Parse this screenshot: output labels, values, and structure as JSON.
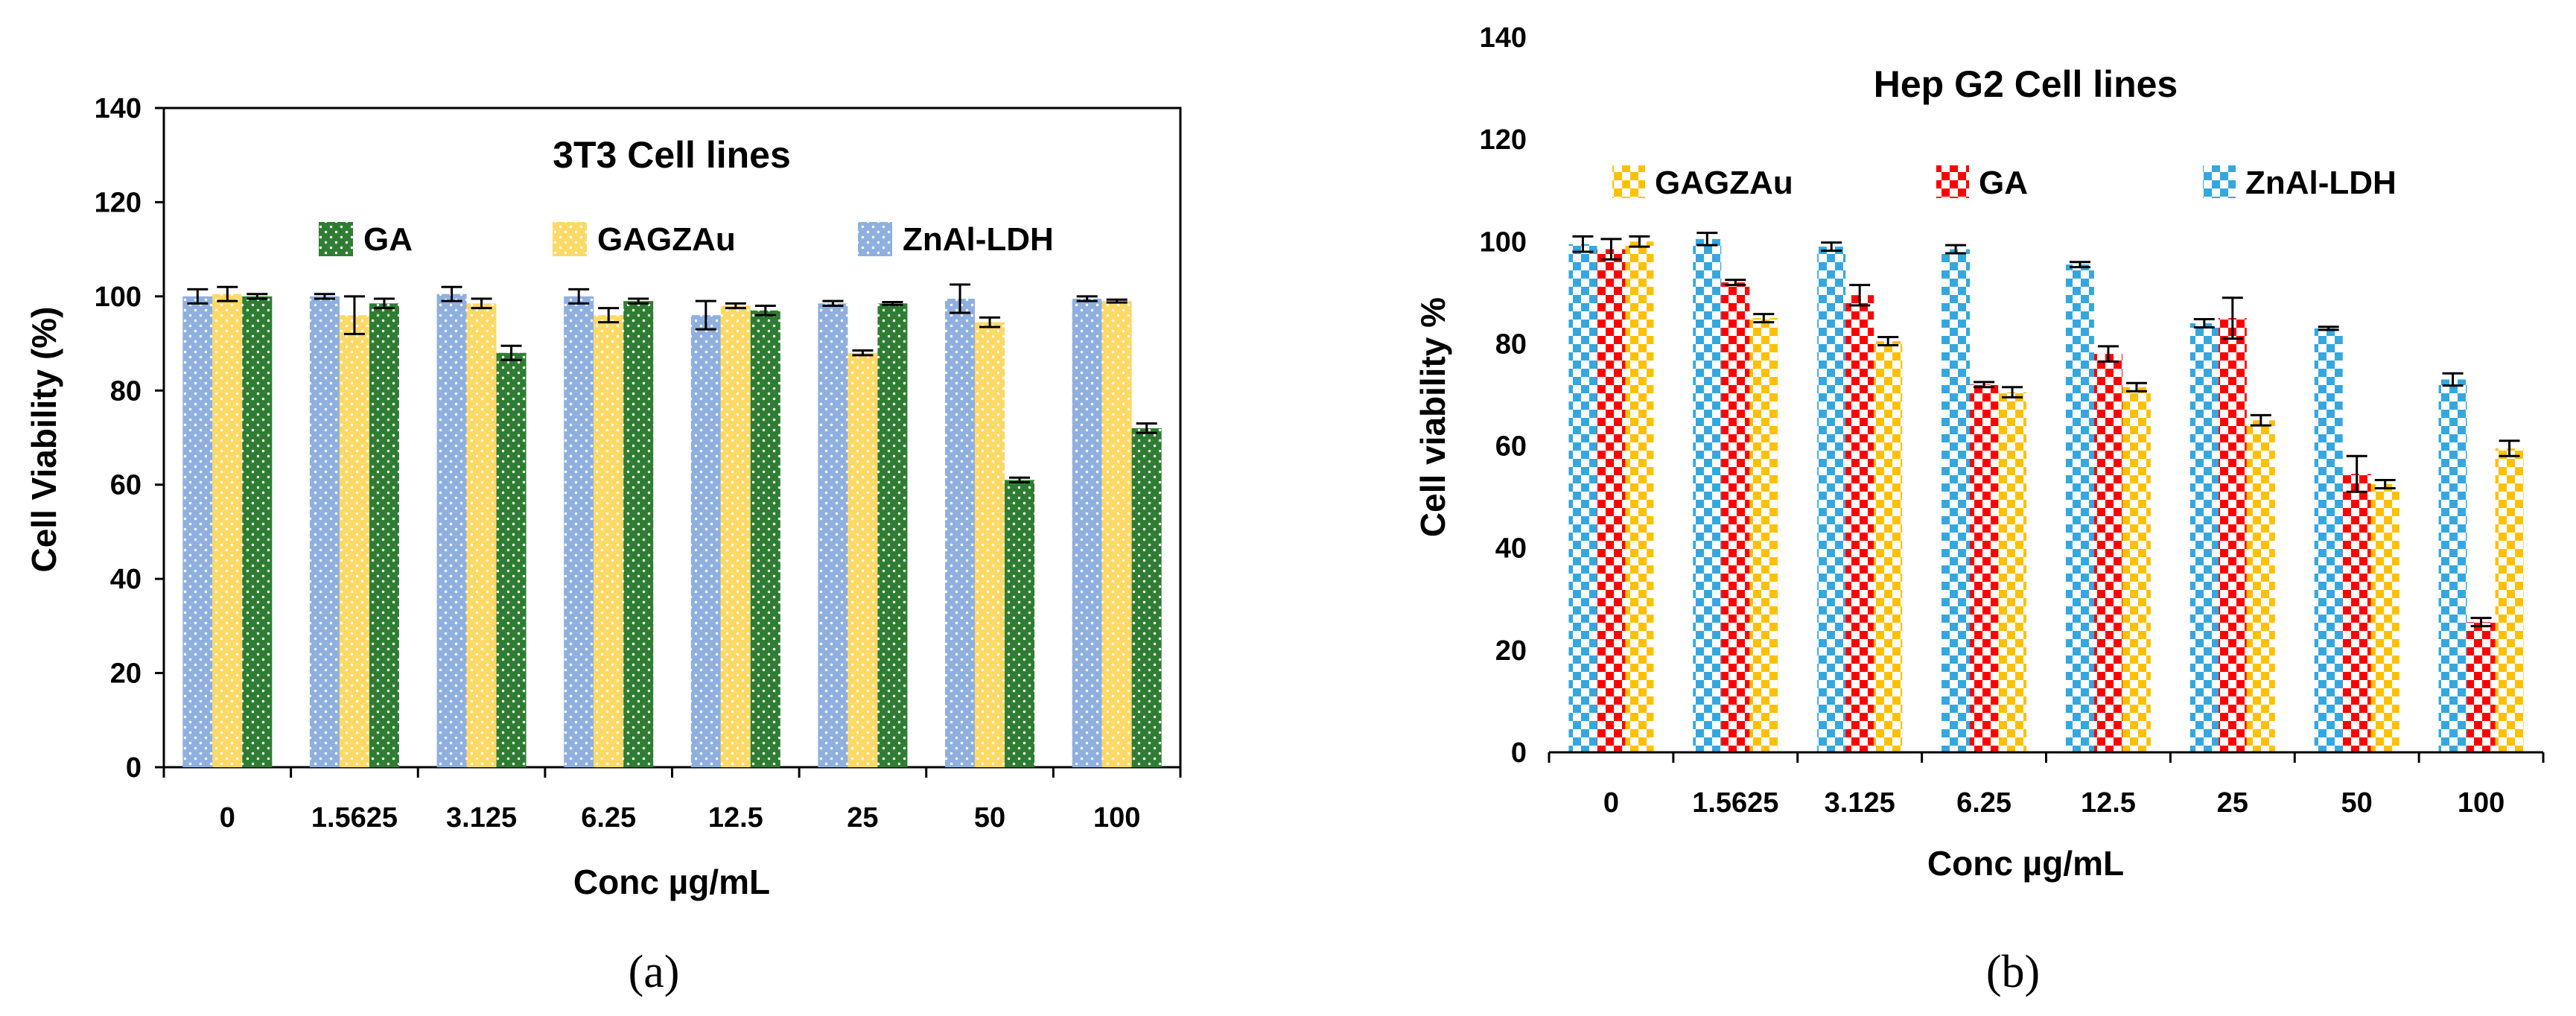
{
  "chart_data": [
    {
      "type": "bar",
      "title": "3T3 Cell lines",
      "xlabel": "Conc µg/mL",
      "ylabel": "Cell Viability (%)",
      "ylim": [
        0,
        140
      ],
      "yticks": [
        0,
        20,
        40,
        60,
        80,
        100,
        120,
        140
      ],
      "categories": [
        "0",
        "1.5625",
        "3.125",
        "6.25",
        "12.5",
        "25",
        "50",
        "100"
      ],
      "legend_order": [
        "GA",
        "GAGZAu",
        "ZnAl-LDH"
      ],
      "legend_position": "top",
      "grid": false,
      "caption": "(a)",
      "series": [
        {
          "name": "ZnAl-LDH",
          "color": "#8FB0DF",
          "pattern": "small-dots",
          "values": [
            100,
            100,
            100.5,
            100,
            96,
            98.5,
            99.5,
            99.5
          ],
          "errors": [
            1.5,
            0.5,
            1.5,
            1.5,
            3,
            0.5,
            3,
            0.5
          ]
        },
        {
          "name": "GAGZAu",
          "color": "#FFD966",
          "pattern": "small-dots",
          "values": [
            100.5,
            96,
            98.5,
            96,
            98,
            88,
            94.5,
            99
          ],
          "errors": [
            1.5,
            4,
            1,
            1.5,
            0.5,
            0.5,
            1,
            0.3
          ]
        },
        {
          "name": "GA",
          "color": "#2E7D32",
          "pattern": "small-dots",
          "values": [
            100,
            98.5,
            88,
            99,
            97,
            98.5,
            61,
            72
          ],
          "errors": [
            0.5,
            1,
            1.5,
            0.5,
            1,
            0.3,
            0.5,
            1
          ]
        }
      ]
    },
    {
      "type": "bar",
      "title": "Hep G2 Cell lines",
      "xlabel": "Conc µg/mL",
      "ylabel": "Cell viability %",
      "ylim": [
        0,
        140
      ],
      "yticks": [
        0,
        20,
        40,
        60,
        80,
        100,
        120,
        140
      ],
      "categories": [
        "0",
        "1.5625",
        "3.125",
        "6.25",
        "12.5",
        "25",
        "50",
        "100"
      ],
      "legend_order": [
        "GAGZAu",
        "GA",
        "ZnAl-LDH"
      ],
      "legend_position": "top",
      "grid": false,
      "caption": "(b)",
      "series": [
        {
          "name": "ZnAl-LDH",
          "color": "#35A7DE",
          "pattern": "large-checker",
          "values": [
            99.5,
            100.5,
            99,
            98.5,
            95.5,
            84,
            83,
            73
          ],
          "errors": [
            1.5,
            1.2,
            0.8,
            0.8,
            0.5,
            0.8,
            0.3,
            1.2
          ]
        },
        {
          "name": "GA",
          "color": "#FF0000",
          "pattern": "large-checker",
          "values": [
            98.5,
            92,
            89.5,
            72,
            78,
            85,
            54.5,
            25.5
          ],
          "errors": [
            2,
            0.5,
            2,
            0.5,
            1.5,
            4,
            3.5,
            0.8
          ]
        },
        {
          "name": "GAGZAu",
          "color": "#FFC000",
          "pattern": "large-checker",
          "values": [
            100,
            85,
            80.5,
            70.5,
            71.5,
            65,
            52.5,
            59.5
          ],
          "errors": [
            1,
            0.8,
            0.8,
            1,
            0.8,
            1,
            0.8,
            1.5
          ]
        }
      ]
    }
  ]
}
